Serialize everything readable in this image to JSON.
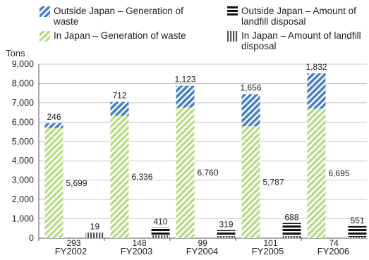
{
  "chart_data": {
    "type": "bar",
    "title": "",
    "ylabel": "Tons",
    "xlabel": "",
    "ylim": [
      0,
      9000
    ],
    "yticks": [
      0,
      1000,
      2000,
      3000,
      4000,
      5000,
      6000,
      7000,
      8000,
      9000
    ],
    "ytick_labels": [
      "0",
      "1,000",
      "2,000",
      "3,000",
      "4,000",
      "5,000",
      "6,000",
      "7,000",
      "8,000",
      "9,000"
    ],
    "grid": true,
    "legend_position": "top",
    "categories": [
      "FY2002",
      "FY2003",
      "FY2004",
      "FY2005",
      "FY2006"
    ],
    "series": [
      {
        "name": "In Japan – Generation of waste",
        "stack": "generation",
        "values": [
          5699,
          6336,
          6760,
          5787,
          6695
        ],
        "labels": [
          "5,699",
          "6,336",
          "6,760",
          "5,787",
          "6,695"
        ],
        "color": "#8dc63f",
        "pattern": "diagonal-stripe"
      },
      {
        "name": "Outside Japan – Generation of waste",
        "stack": "generation",
        "values": [
          246,
          712,
          1123,
          1656,
          1832
        ],
        "labels": [
          "246",
          "712",
          "1,123",
          "1,656",
          "1,832"
        ],
        "color": "#4a7fc1",
        "pattern": "diagonal-stripe"
      },
      {
        "name": "In Japan – Amount of landfill disposal",
        "stack": "landfill",
        "values": [
          293,
          148,
          99,
          101,
          74
        ],
        "labels": [
          "293",
          "148",
          "99",
          "101",
          "74"
        ],
        "color": "#555555",
        "pattern": "vertical-stripe"
      },
      {
        "name": "Outside Japan – Amount of landfill disposal",
        "stack": "landfill",
        "values": [
          19,
          410,
          319,
          688,
          551
        ],
        "labels": [
          "19",
          "410",
          "319",
          "688",
          "551"
        ],
        "color": "#111111",
        "pattern": "horizontal-stripe"
      }
    ]
  },
  "legend": {
    "outside_gen": "Outside Japan – Generation of waste",
    "in_gen": "In Japan – Generation of waste",
    "outside_landfill": "Outside Japan – Amount of landfill disposal",
    "in_landfill": "In Japan – Amount of landfill disposal"
  }
}
